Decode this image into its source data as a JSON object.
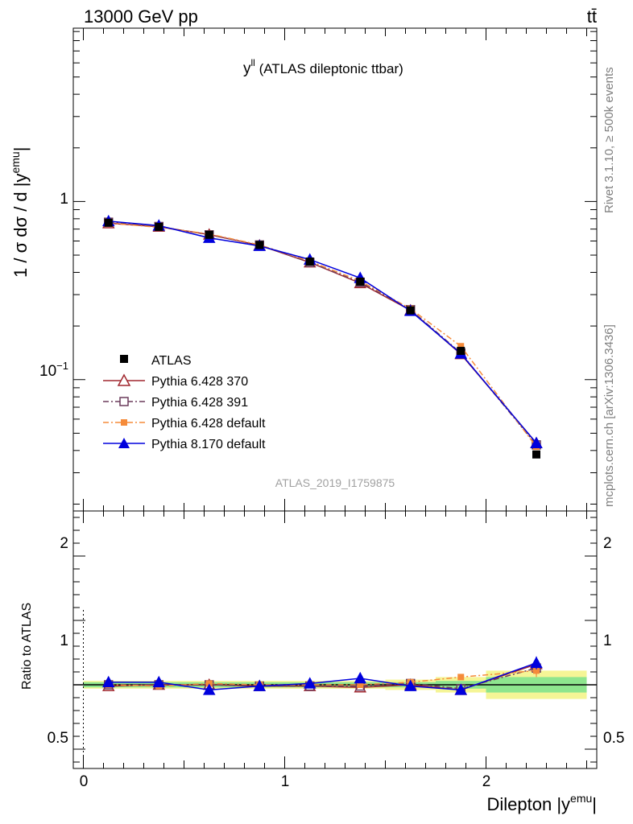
{
  "header": {
    "energy_label": "13000 GeV pp",
    "process_label": "tt̄",
    "plot_title_main": "y",
    "plot_title_sup": "ll",
    "plot_title_rest": " (ATLAS dileptonic ttbar)",
    "analysis_id": "ATLAS_2019_I1759875",
    "rivet_label": "Rivet 3.1.10, ≥ 500k events",
    "site_label": "mcplots.cern.ch [arXiv:1306.3436]"
  },
  "axes": {
    "ylabel_main_prefix": "1 / σ  dσ / d |y",
    "ylabel_main_sup": "emu",
    "ylabel_main_suffix": "|",
    "ylabel_ratio": "Ratio to ATLAS",
    "xlabel_prefix": "Dilepton |y",
    "xlabel_sup": "emu",
    "xlabel_suffix": "|",
    "main_tick_1": "1",
    "main_tick_01_base": "10",
    "main_tick_01_exp": "−1",
    "ratio_ticks": [
      "2",
      "1",
      "0.5"
    ],
    "x_ticks": [
      "0",
      "1",
      "2"
    ]
  },
  "legend": [
    {
      "label": "ATLAS"
    },
    {
      "label": "Pythia 6.428 370"
    },
    {
      "label": "Pythia 6.428 391"
    },
    {
      "label": "Pythia 6.428 default"
    },
    {
      "label": "Pythia 8.170 default"
    }
  ],
  "chart_data": {
    "type": "scatter",
    "x_scale": "linear",
    "y_scale": "log",
    "xlim": [
      -0.05,
      2.55
    ],
    "ylim": [
      0.0183,
      9.4
    ],
    "ratio_ylim": [
      0.35,
      2.35
    ],
    "bins": [
      [
        0.0,
        0.25
      ],
      [
        0.25,
        0.5
      ],
      [
        0.5,
        0.75
      ],
      [
        0.75,
        1.0
      ],
      [
        1.0,
        1.25
      ],
      [
        1.25,
        1.5
      ],
      [
        1.5,
        1.75
      ],
      [
        1.75,
        2.0
      ],
      [
        2.0,
        2.5
      ]
    ],
    "x": [
      0.125,
      0.375,
      0.625,
      0.875,
      1.125,
      1.375,
      1.625,
      1.875,
      2.25
    ],
    "data": {
      "name": "ATLAS",
      "values": [
        0.76,
        0.72,
        0.65,
        0.57,
        0.46,
        0.355,
        0.245,
        0.145,
        0.038
      ],
      "band_inner": [
        0.02,
        0.02,
        0.02,
        0.02,
        0.02,
        0.02,
        0.02,
        0.03,
        0.06
      ],
      "band_outer": [
        0.03,
        0.03,
        0.03,
        0.03,
        0.03,
        0.03,
        0.04,
        0.06,
        0.11
      ]
    },
    "series": [
      {
        "name": "Pythia 6.428 370",
        "color": "#a0272e",
        "dash": "solid",
        "marker": "triangle-open",
        "values": [
          0.755,
          0.722,
          0.652,
          0.567,
          0.455,
          0.348,
          0.245,
          0.139,
          0.044
        ],
        "ratio": [
          0.99,
          1.0,
          1.0,
          0.99,
          0.99,
          0.98,
          1.0,
          0.96,
          1.16
        ]
      },
      {
        "name": "Pythia 6.428 391",
        "color": "#6b3b5c",
        "dash": "dashdot",
        "marker": "square-open",
        "values": [
          0.765,
          0.724,
          0.65,
          0.57,
          0.455,
          0.352,
          0.247,
          0.141,
          0.043
        ],
        "ratio": [
          1.0,
          1.0,
          1.0,
          0.99,
          0.99,
          0.99,
          1.01,
          0.97,
          1.13
        ]
      },
      {
        "name": "Pythia 6.428 default",
        "color": "#f58b3a",
        "dash": "dashdot",
        "marker": "square-filled",
        "values": [
          0.758,
          0.716,
          0.657,
          0.571,
          0.462,
          0.358,
          0.25,
          0.154,
          0.042
        ],
        "ratio": [
          1.0,
          0.99,
          1.01,
          1.0,
          1.0,
          1.0,
          1.02,
          1.06,
          1.11
        ]
      },
      {
        "name": "Pythia 8.170 default",
        "color": "#0000dd",
        "dash": "solid",
        "marker": "triangle-filled",
        "values": [
          0.775,
          0.732,
          0.625,
          0.563,
          0.472,
          0.372,
          0.243,
          0.14,
          0.044
        ],
        "ratio": [
          1.02,
          1.02,
          0.96,
          0.99,
          1.01,
          1.05,
          0.99,
          0.96,
          1.17
        ]
      }
    ]
  }
}
